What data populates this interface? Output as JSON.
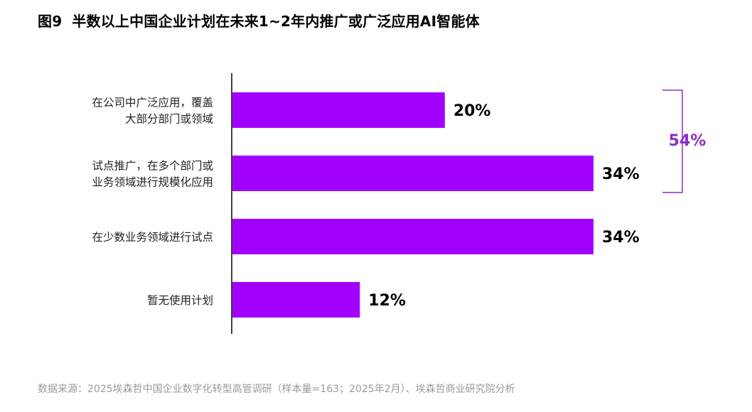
{
  "title": {
    "figure_no": "图9",
    "text": "半数以上中国企业计划在未来1~2年内推广或广泛应用AI智能体"
  },
  "colors": {
    "bar": "#a100ff",
    "bracket": "#8b2fc9",
    "axis": "#000000"
  },
  "chart_data": {
    "type": "bar",
    "orientation": "horizontal",
    "categories": [
      [
        "在公司中广泛应用，覆盖",
        "大部分部门或领域"
      ],
      [
        "试点推广，在多个部门或",
        "业务领域进行规模化应用"
      ],
      [
        "在少数业务领域进行试点"
      ],
      [
        "暂无使用计划"
      ]
    ],
    "values": [
      20,
      34,
      34,
      12
    ],
    "value_labels": [
      "20%",
      "34%",
      "34%",
      "12%"
    ],
    "unit": "%",
    "xlim": [
      0,
      34
    ],
    "bracket": {
      "label": "54%",
      "covers_categories": [
        0,
        1
      ]
    },
    "grid": false
  },
  "source": "数据来源：2025埃森哲中国企业数字化转型高管调研（样本量=163；2025年2月）、埃森哲商业研究院分析"
}
